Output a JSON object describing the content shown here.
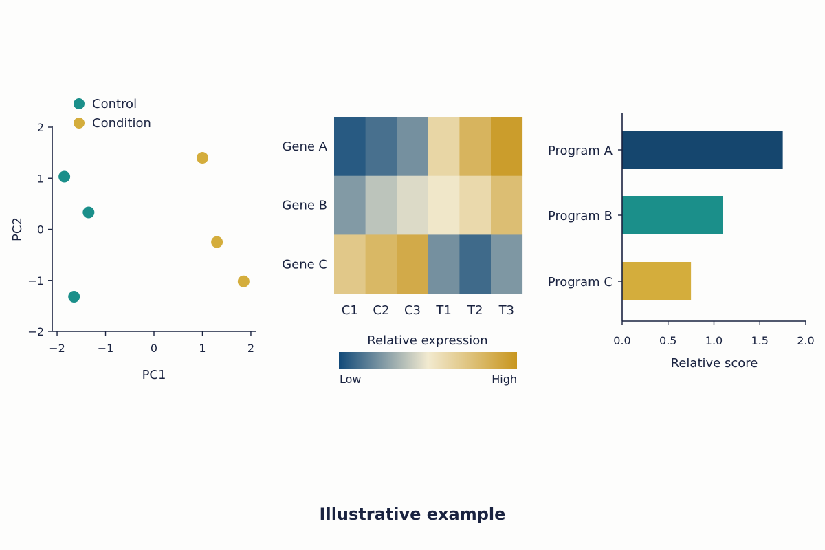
{
  "colors": {
    "control": "#1b8f8a",
    "condition": "#d4ad3c",
    "ink": "#1a2340",
    "program_a": "#15466e",
    "program_b": "#1b8f8a",
    "program_c": "#d4ad3c",
    "heat_low": "#124a79",
    "heat_mid": "#f2ead0",
    "heat_high": "#c8961e"
  },
  "footer": {
    "text": "Illustrative example"
  },
  "chart_data": [
    {
      "type": "scatter",
      "xlabel": "PC1",
      "ylabel": "PC2",
      "xlim": [
        -2.1,
        2.1
      ],
      "ylim": [
        -2,
        2
      ],
      "xticks": [
        -2,
        -1,
        0,
        1,
        2
      ],
      "yticks": [
        -2,
        -1,
        0,
        1,
        2
      ],
      "xtick_labels": [
        "−2",
        "−1",
        "0",
        "1",
        "2"
      ],
      "ytick_labels": [
        "−2",
        "−1",
        "0",
        "1",
        "2"
      ],
      "legend": "top-left",
      "grid": false,
      "series": [
        {
          "name": "Control",
          "color_key": "control",
          "points": [
            [
              -1.85,
              1.03
            ],
            [
              -1.35,
              0.33
            ],
            [
              -1.65,
              -1.32
            ]
          ]
        },
        {
          "name": "Condition",
          "color_key": "condition",
          "points": [
            [
              1.0,
              1.4
            ],
            [
              1.3,
              -0.25
            ],
            [
              1.85,
              -1.02
            ]
          ]
        }
      ]
    },
    {
      "type": "heatmap",
      "rows": [
        "Gene A",
        "Gene B",
        "Gene C"
      ],
      "columns": [
        "C1",
        "C2",
        "C3",
        "T1",
        "T2",
        "T3"
      ],
      "values": [
        [
          0.05,
          0.12,
          0.22,
          0.62,
          0.82,
          0.96
        ],
        [
          0.25,
          0.38,
          0.45,
          0.52,
          0.6,
          0.76
        ],
        [
          0.7,
          0.8,
          0.88,
          0.22,
          0.1,
          0.24
        ]
      ],
      "colorbar": {
        "title": "Relative expression",
        "low_label": "Low",
        "high_label": "High"
      }
    },
    {
      "type": "bar",
      "orientation": "horizontal",
      "categories": [
        "Program A",
        "Program B",
        "Program C"
      ],
      "values": [
        1.75,
        1.1,
        0.75
      ],
      "color_keys": [
        "program_a",
        "program_b",
        "program_c"
      ],
      "xlabel": "Relative score",
      "xlim": [
        0,
        2.0
      ],
      "xticks": [
        0.0,
        0.5,
        1.0,
        1.5,
        2.0
      ],
      "xtick_labels": [
        "0.0",
        "0.5",
        "1.0",
        "1.5",
        "2.0"
      ],
      "grid": false
    }
  ]
}
